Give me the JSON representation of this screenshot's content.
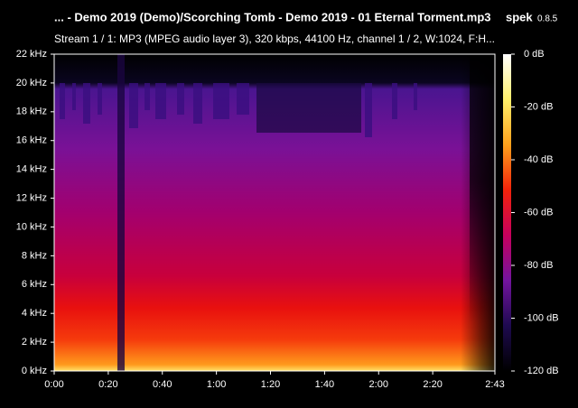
{
  "chart_data": {
    "type": "spectrogram",
    "title": "... - Demo 2019 (Demo)/Scorching Tomb - Demo 2019 - 01 Eternal Torment.mp3",
    "subtitle": "Stream 1 / 1: MP3 (MPEG audio layer 3), 320 kbps, 44100 Hz, channel 1 / 2, W:1024, F:H...",
    "app": "spek",
    "version": "0.8.5",
    "xlim": [
      0,
      163
    ],
    "xticks": [
      {
        "value": 0,
        "label": "0:00"
      },
      {
        "value": 20,
        "label": "0:20"
      },
      {
        "value": 40,
        "label": "0:40"
      },
      {
        "value": 60,
        "label": "1:00"
      },
      {
        "value": 80,
        "label": "1:20"
      },
      {
        "value": 100,
        "label": "1:40"
      },
      {
        "value": 120,
        "label": "2:00"
      },
      {
        "value": 140,
        "label": "2:20"
      },
      {
        "value": 163,
        "label": "2:43"
      }
    ],
    "ylim": [
      0,
      22
    ],
    "yticks": [
      {
        "value": 0,
        "label": "0 kHz"
      },
      {
        "value": 2,
        "label": "2 kHz"
      },
      {
        "value": 4,
        "label": "4 kHz"
      },
      {
        "value": 6,
        "label": "6 kHz"
      },
      {
        "value": 8,
        "label": "8 kHz"
      },
      {
        "value": 10,
        "label": "10 kHz"
      },
      {
        "value": 12,
        "label": "12 kHz"
      },
      {
        "value": 14,
        "label": "14 kHz"
      },
      {
        "value": 16,
        "label": "16 kHz"
      },
      {
        "value": 18,
        "label": "18 kHz"
      },
      {
        "value": 20,
        "label": "20 kHz"
      },
      {
        "value": 22,
        "label": "22 kHz"
      }
    ],
    "zlim": [
      -120,
      0
    ],
    "zticks": [
      {
        "value": 0,
        "label": "0 dB"
      },
      {
        "value": -20,
        "label": "-20 dB"
      },
      {
        "value": -40,
        "label": "-40 dB"
      },
      {
        "value": -60,
        "label": "-60 dB"
      },
      {
        "value": -80,
        "label": "-80 dB"
      },
      {
        "value": -100,
        "label": "-100 dB"
      },
      {
        "value": -120,
        "label": "-120 dB"
      }
    ],
    "colormap": [
      "#ffffff",
      "#ffef6a",
      "#ffa11c",
      "#f2230a",
      "#c7005d",
      "#73149e",
      "#1e0a50",
      "#000000"
    ]
  }
}
